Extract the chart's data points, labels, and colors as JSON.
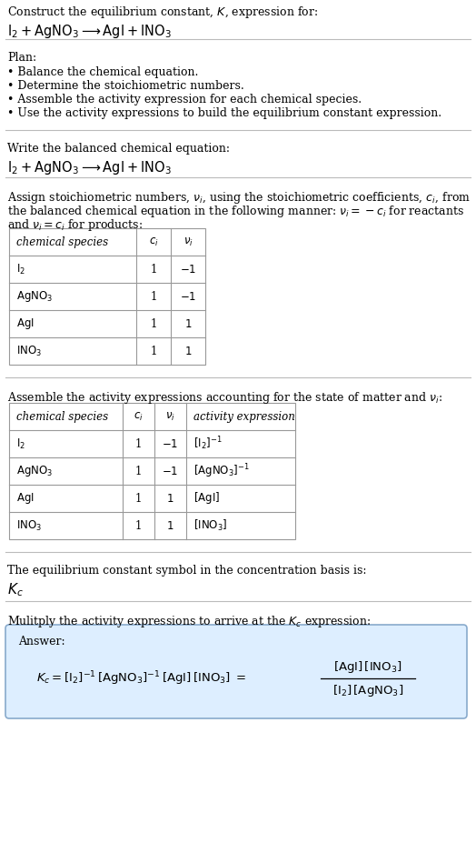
{
  "title_line1": "Construct the equilibrium constant, $K$, expression for:",
  "title_line2": "$\\mathrm{I_2 + AgNO_3 \\longrightarrow AgI + INO_3}$",
  "plan_header": "Plan:",
  "plan_bullets": [
    "• Balance the chemical equation.",
    "• Determine the stoichiometric numbers.",
    "• Assemble the activity expression for each chemical species.",
    "• Use the activity expressions to build the equilibrium constant expression."
  ],
  "balanced_eq_header": "Write the balanced chemical equation:",
  "balanced_eq": "$\\mathrm{I_2 + AgNO_3 \\longrightarrow AgI + INO_3}$",
  "stoich_intro_1": "Assign stoichiometric numbers, $\\nu_i$, using the stoichiometric coefficients, $c_i$, from",
  "stoich_intro_2": "the balanced chemical equation in the following manner: $\\nu_i = -c_i$ for reactants",
  "stoich_intro_3": "and $\\nu_i = c_i$ for products:",
  "table1_headers": [
    "chemical species",
    "$c_i$",
    "$\\nu_i$"
  ],
  "table1_rows": [
    [
      "$\\mathrm{I_2}$",
      "1",
      "$-1$"
    ],
    [
      "$\\mathrm{AgNO_3}$",
      "1",
      "$-1$"
    ],
    [
      "$\\mathrm{AgI}$",
      "1",
      "$1$"
    ],
    [
      "$\\mathrm{INO_3}$",
      "1",
      "$1$"
    ]
  ],
  "activity_intro": "Assemble the activity expressions accounting for the state of matter and $\\nu_i$:",
  "table2_headers": [
    "chemical species",
    "$c_i$",
    "$\\nu_i$",
    "activity expression"
  ],
  "table2_rows": [
    [
      "$\\mathrm{I_2}$",
      "1",
      "$-1$",
      "$[\\mathrm{I_2}]^{-1}$"
    ],
    [
      "$\\mathrm{AgNO_3}$",
      "1",
      "$-1$",
      "$[\\mathrm{AgNO_3}]^{-1}$"
    ],
    [
      "$\\mathrm{AgI}$",
      "1",
      "$1$",
      "$[\\mathrm{AgI}]$"
    ],
    [
      "$\\mathrm{INO_3}$",
      "1",
      "$1$",
      "$[\\mathrm{INO_3}]$"
    ]
  ],
  "kc_symbol_text": "The equilibrium constant symbol in the concentration basis is:",
  "kc_symbol": "$K_c$",
  "multiply_text": "Mulitply the activity expressions to arrive at the $K_c$ expression:",
  "answer_label": "Answer:",
  "answer_box_color": "#ddeeff",
  "answer_box_border": "#88aacc",
  "bg_color": "#ffffff",
  "text_color": "#000000",
  "table_border_color": "#999999",
  "section_divider_color": "#bbbbbb"
}
